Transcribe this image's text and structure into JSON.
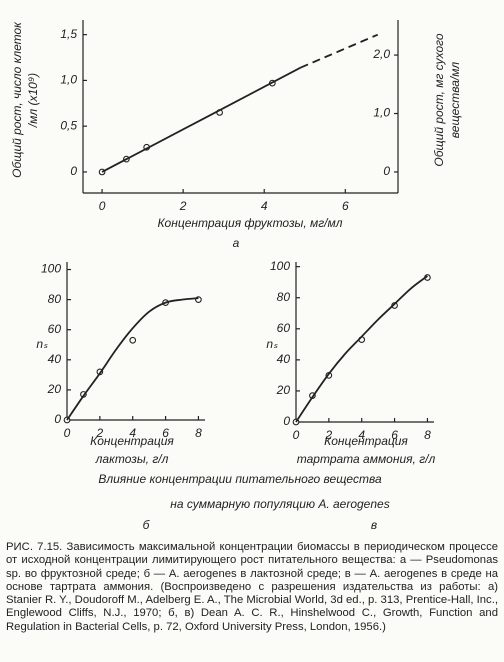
{
  "chart_data": [
    {
      "type": "scatter",
      "panel_label": "а",
      "xlabel": "Концентрация фруктозы, мг/мл",
      "ylabel": [
        "Общий рост, число клеток",
        "/мл (х10⁹)"
      ],
      "y2label": [
        "Общий рост, мг сухого",
        "вещества/мл"
      ],
      "xlim": [
        -0.47,
        7.3
      ],
      "xticks": [
        0,
        2,
        4,
        6
      ],
      "ylim": [
        -0.23,
        1.66
      ],
      "yticks": [
        0,
        {
          "value": 0.5,
          "label": "0,5"
        },
        {
          "value": 1.0,
          "label": "1,0"
        },
        {
          "value": 1.5,
          "label": "1,5"
        }
      ],
      "y2lim": [
        -0.36,
        2.6
      ],
      "y2ticks": [
        0,
        {
          "value": 1.0,
          "label": "1,0"
        },
        {
          "value": 2.0,
          "label": "2,0"
        }
      ],
      "series": [
        {
          "style": "markers",
          "color": "#222222",
          "x": [
            0,
            0.6,
            1.1,
            2.9,
            4.2
          ],
          "values": [
            0,
            0.14,
            0.27,
            0.65,
            0.97
          ]
        },
        {
          "style": "line",
          "color": "#222222",
          "dash": false,
          "x": [
            0,
            4.9
          ],
          "values": [
            0,
            1.14
          ]
        },
        {
          "style": "line",
          "color": "#222222",
          "dash": true,
          "x": [
            4.9,
            6.8
          ],
          "values": [
            1.14,
            1.5
          ]
        }
      ]
    },
    {
      "type": "scatter",
      "panel_label": "б",
      "xlabel": [
        "Концентрация",
        "лактозы, г/л"
      ],
      "ylabel": "nₛ",
      "xlim": [
        0,
        8.4
      ],
      "xticks": [
        0,
        2,
        4,
        6,
        8
      ],
      "ylim": [
        0,
        105
      ],
      "yticks": [
        0,
        20,
        40,
        60,
        80,
        100
      ],
      "series": [
        {
          "style": "markers",
          "color": "#222222",
          "x": [
            0,
            1,
            2,
            4,
            6,
            8
          ],
          "values": [
            0,
            17,
            32,
            53,
            78,
            80
          ]
        },
        {
          "style": "line",
          "color": "#222222",
          "dash": false,
          "x": [
            0,
            1,
            2,
            3,
            4,
            5,
            6,
            7,
            8
          ],
          "values": [
            0,
            16,
            31,
            47,
            61,
            72,
            78,
            80,
            81
          ]
        }
      ]
    },
    {
      "type": "scatter",
      "panel_label": "в",
      "xlabel": [
        "Концентрация",
        "тартрата аммония, г/л"
      ],
      "ylabel": "nₛ",
      "xlim": [
        0,
        8.4
      ],
      "xticks": [
        0,
        2,
        4,
        6,
        8
      ],
      "ylim": [
        0,
        103
      ],
      "yticks": [
        0,
        20,
        40,
        60,
        80,
        100
      ],
      "series": [
        {
          "style": "markers",
          "color": "#222222",
          "x": [
            0,
            1,
            2,
            4,
            6,
            8
          ],
          "values": [
            0,
            17,
            30,
            53,
            75,
            93
          ]
        },
        {
          "style": "line",
          "color": "#222222",
          "dash": false,
          "x": [
            0,
            1,
            2,
            3,
            4,
            5,
            6,
            7,
            8
          ],
          "values": [
            0,
            16,
            31,
            44,
            55,
            66,
            76,
            86,
            94
          ]
        }
      ]
    }
  ],
  "shared_caption": [
    "Влияние концентрации питательного вещества",
    "на суммарную популяцию A. aerogenes"
  ],
  "figure_caption": "РИС. 7.15. Зависимость максимальной концентрации биомассы в периодическом процессе от исходной концентрации лимитирующего рост питательного вещества: а — Pseudomonas sp. во фруктозной среде; б — A. aerogenes в лактозной среде; в — A. aerogenes в среде на основе тартрата аммония. (Воспроизведено с разрешения издательства из работы: а) Stanier R. Y., Doudoroff M., Adelberg E. A., The Microbial World, 3d ed., p. 313, Prentice-Hall, Inc., Englewood Cliffs, N.J., 1970; б, в) Dean A. C. R., Hinshelwood C., Growth, Function and Regulation in Bacterial Cells, p. 72, Oxford University Press, London, 1956.)"
}
